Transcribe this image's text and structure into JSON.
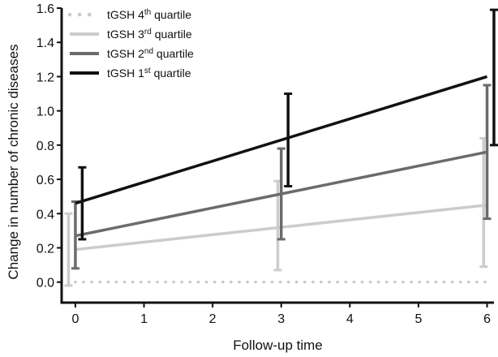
{
  "chart_data": {
    "type": "line",
    "title": "",
    "xlabel": "Follow-up time",
    "ylabel": "Change in number of chronic diseases",
    "xlim": [
      -0.2,
      6.1
    ],
    "ylim": [
      -0.12,
      1.6
    ],
    "xticks": [
      0,
      1,
      2,
      3,
      4,
      5,
      6
    ],
    "yticks": [
      0.0,
      0.2,
      0.4,
      0.6,
      0.8,
      1.0,
      1.2,
      1.4,
      1.6
    ],
    "xtick_labels": [
      "0",
      "1",
      "2",
      "3",
      "4",
      "5",
      "6"
    ],
    "ytick_labels": [
      "0.0",
      "0.2",
      "0.4",
      "0.6",
      "0.8",
      "1.0",
      "1.2",
      "1.4",
      "1.6"
    ],
    "grid": false,
    "legend_position": "top-left",
    "series": [
      {
        "name": "tGSH 4th quartile",
        "name_base": "tGSH 4",
        "name_sup": "th",
        "name_suffix": " quartile",
        "color": "#c8c8c8",
        "style": "dotted",
        "x": [
          0,
          6
        ],
        "y": [
          0.0,
          0.0
        ],
        "error_bars": []
      },
      {
        "name": "tGSH 3rd quartile",
        "name_base": "tGSH 3",
        "name_sup": "rd",
        "name_suffix": " quartile",
        "color": "#cccccc",
        "style": "solid",
        "x": [
          0,
          6
        ],
        "y": [
          0.19,
          0.45
        ],
        "error_bars": [
          {
            "x": -0.1,
            "low": -0.02,
            "high": 0.4
          },
          {
            "x": 2.95,
            "low": 0.07,
            "high": 0.59
          },
          {
            "x": 5.95,
            "low": 0.09,
            "high": 0.84
          }
        ]
      },
      {
        "name": "tGSH 2nd quartile",
        "name_base": "tGSH 2",
        "name_sup": "nd",
        "name_suffix": " quartile",
        "color": "#6b6b6b",
        "style": "solid",
        "x": [
          0,
          6
        ],
        "y": [
          0.27,
          0.76
        ],
        "error_bars": [
          {
            "x": 0.0,
            "low": 0.08,
            "high": 0.47
          },
          {
            "x": 3.0,
            "low": 0.25,
            "high": 0.78
          },
          {
            "x": 6.0,
            "low": 0.37,
            "high": 1.15
          }
        ]
      },
      {
        "name": "tGSH 1st quartile",
        "name_base": "tGSH 1",
        "name_sup": "st",
        "name_suffix": " quartile",
        "color": "#111111",
        "style": "solid",
        "x": [
          0,
          6
        ],
        "y": [
          0.46,
          1.2
        ],
        "error_bars": [
          {
            "x": 0.1,
            "low": 0.25,
            "high": 0.67
          },
          {
            "x": 3.1,
            "low": 0.56,
            "high": 1.1
          },
          {
            "x": 6.1,
            "low": 0.8,
            "high": 1.59
          }
        ]
      }
    ]
  }
}
